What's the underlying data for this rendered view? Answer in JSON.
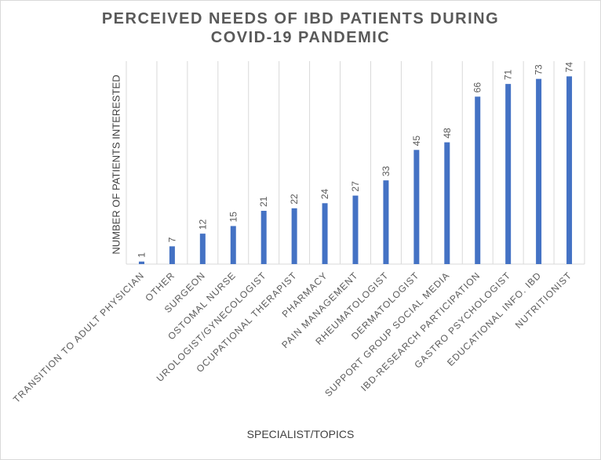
{
  "title_lines": [
    "PERCEIVED NEEDS OF IBD PATIENTS DURING",
    "COVID-19 PANDEMIC"
  ],
  "colors": {
    "bar": "#4472c4",
    "grid": "#d9d9d9",
    "text": "#595959"
  },
  "chart_data": {
    "type": "bar",
    "title": "PERCEIVED NEEDS OF IBD PATIENTS DURING COVID-19 PANDEMIC",
    "xlabel": "SPECIALIST/TOPICS",
    "ylabel": "NUMBER OF PATIENTS INTERESTED",
    "categories": [
      "TRANSITION TO ADULT PHYSICIAN",
      "OTHER",
      "SURGEON",
      "OSTOMAL NURSE",
      "UROLOGIST/GYNECOLOGIST",
      "OCUPATIONAL THERAPIST",
      "PHARMACY",
      "PAIN MANAGEMENT",
      "RHEUMATOLOGIST",
      "DERMATOLOGIST",
      "SUPPORT GROUP SOCIAL MEDIA",
      "IBD-RESEARCH PARTICIPATION",
      "GASTRO PSYCHOLOGIST",
      "EDUCATIONAL INFO. IBD",
      "NUTRITIONIST"
    ],
    "values": [
      1,
      7,
      12,
      15,
      21,
      22,
      24,
      27,
      33,
      45,
      48,
      66,
      71,
      73,
      74
    ],
    "ylim": [
      0,
      80
    ],
    "grid": "vertical",
    "data_labels": true,
    "legend": "none"
  }
}
